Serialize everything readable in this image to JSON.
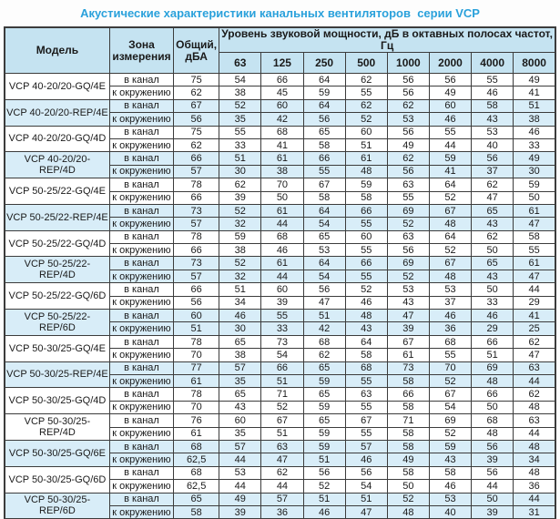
{
  "title": "Акустические характеристики канальных вентиляторов  серии VCP",
  "colors": {
    "title_text": "#2aa1db",
    "header_bg": "#c5e3f1",
    "shaded_row_bg": "#d8edf8",
    "border": "#3c3c3c"
  },
  "table": {
    "headers": {
      "model": "Модель",
      "zone": "Зона измерения",
      "total": "Общий, дБА",
      "spectrum": "Уровень звуковой мощности, дБ в октавных полосах частот, Гц",
      "frequencies": [
        "63",
        "125",
        "250",
        "500",
        "1000",
        "2000",
        "4000",
        "8000"
      ]
    },
    "groups": [
      {
        "model": "VCP 40-20/20-GQ/4E",
        "shaded": false,
        "rows": [
          {
            "zone": "в канал",
            "total": "75",
            "levels": [
              54,
              66,
              64,
              62,
              56,
              56,
              55,
              49
            ]
          },
          {
            "zone": "к окружению",
            "total": "62",
            "levels": [
              38,
              45,
              59,
              55,
              56,
              49,
              46,
              41
            ]
          }
        ]
      },
      {
        "model": "VCP 40-20/20-REP/4E",
        "shaded": true,
        "rows": [
          {
            "zone": "в канал",
            "total": "67",
            "levels": [
              52,
              60,
              64,
              62,
              62,
              60,
              58,
              51
            ]
          },
          {
            "zone": "к окружению",
            "total": "56",
            "levels": [
              35,
              42,
              56,
              52,
              53,
              46,
              43,
              38
            ]
          }
        ]
      },
      {
        "model": "VCP 40-20/20-GQ/4D",
        "shaded": false,
        "rows": [
          {
            "zone": "в канал",
            "total": "75",
            "levels": [
              55,
              68,
              65,
              60,
              56,
              55,
              53,
              46
            ]
          },
          {
            "zone": "к окружению",
            "total": "62",
            "levels": [
              33,
              41,
              58,
              51,
              49,
              44,
              40,
              33
            ]
          }
        ]
      },
      {
        "model": "VCP 40-20/20-REP/4D",
        "shaded": true,
        "rows": [
          {
            "zone": "в канал",
            "total": "66",
            "levels": [
              51,
              61,
              66,
              61,
              62,
              59,
              56,
              49
            ]
          },
          {
            "zone": "к окружению",
            "total": "57",
            "levels": [
              30,
              38,
              55,
              48,
              56,
              41,
              37,
              30
            ]
          }
        ]
      },
      {
        "model": "VCP 50-25/22-GQ/4E",
        "shaded": false,
        "rows": [
          {
            "zone": "в канал",
            "total": "78",
            "levels": [
              62,
              70,
              67,
              59,
              63,
              64,
              62,
              59
            ]
          },
          {
            "zone": "к окружению",
            "total": "66",
            "levels": [
              39,
              50,
              58,
              58,
              55,
              52,
              47,
              50
            ]
          }
        ]
      },
      {
        "model": "VCP 50-25/22-REP/4E",
        "shaded": true,
        "rows": [
          {
            "zone": "в канал",
            "total": "73",
            "levels": [
              52,
              61,
              64,
              66,
              69,
              67,
              65,
              61
            ]
          },
          {
            "zone": "к окружению",
            "total": "57",
            "levels": [
              32,
              44,
              54,
              55,
              52,
              48,
              43,
              47
            ]
          }
        ]
      },
      {
        "model": "VCP 50-25/22-GQ/4D",
        "shaded": false,
        "rows": [
          {
            "zone": "в канал",
            "total": "78",
            "levels": [
              59,
              68,
              65,
              60,
              63,
              64,
              62,
              58
            ]
          },
          {
            "zone": "к окружению",
            "total": "66",
            "levels": [
              38,
              46,
              53,
              55,
              56,
              52,
              50,
              55
            ]
          }
        ]
      },
      {
        "model": "VCP 50-25/22-REP/4D",
        "shaded": true,
        "rows": [
          {
            "zone": "в канал",
            "total": "73",
            "levels": [
              52,
              61,
              64,
              66,
              69,
              67,
              65,
              61
            ]
          },
          {
            "zone": "к окружению",
            "total": "57",
            "levels": [
              32,
              44,
              54,
              55,
              52,
              48,
              43,
              47
            ]
          }
        ]
      },
      {
        "model": "VCP 50-25/22-GQ/6D",
        "shaded": false,
        "rows": [
          {
            "zone": "в канал",
            "total": "66",
            "levels": [
              51,
              60,
              56,
              52,
              53,
              53,
              50,
              44
            ]
          },
          {
            "zone": "к окружению",
            "total": "56",
            "levels": [
              34,
              39,
              47,
              46,
              43,
              37,
              33,
              29
            ]
          }
        ]
      },
      {
        "model": "VCP 50-25/22-REP/6D",
        "shaded": true,
        "rows": [
          {
            "zone": "в канал",
            "total": "60",
            "levels": [
              46,
              55,
              51,
              48,
              47,
              46,
              46,
              41
            ]
          },
          {
            "zone": "к окружению",
            "total": "51",
            "levels": [
              30,
              33,
              42,
              43,
              39,
              36,
              29,
              25
            ]
          }
        ]
      },
      {
        "model": "VCP 50-30/25-GQ/4E",
        "shaded": false,
        "rows": [
          {
            "zone": "в канал",
            "total": "78",
            "levels": [
              65,
              73,
              68,
              64,
              67,
              68,
              66,
              62
            ]
          },
          {
            "zone": "к окружению",
            "total": "70",
            "levels": [
              38,
              54,
              62,
              58,
              61,
              55,
              51,
              47
            ]
          }
        ]
      },
      {
        "model": "VCP 50-30/25-REP/4E",
        "shaded": true,
        "rows": [
          {
            "zone": "в канал",
            "total": "77",
            "levels": [
              57,
              66,
              65,
              68,
              73,
              70,
              69,
              63
            ]
          },
          {
            "zone": "к окружению",
            "total": "61",
            "levels": [
              35,
              51,
              59,
              55,
              58,
              52,
              48,
              44
            ]
          }
        ]
      },
      {
        "model": "VCP 50-30/25-GQ/4D",
        "shaded": false,
        "rows": [
          {
            "zone": "в канал",
            "total": "78",
            "levels": [
              65,
              71,
              65,
              63,
              66,
              67,
              66,
              62
            ]
          },
          {
            "zone": "к окружению",
            "total": "70",
            "levels": [
              43,
              52,
              59,
              55,
              58,
              54,
              50,
              48
            ]
          }
        ]
      },
      {
        "model": "VCP 50-30/25-REP/4D",
        "shaded": false,
        "rows": [
          {
            "zone": "в канал",
            "total": "76",
            "levels": [
              60,
              67,
              65,
              67,
              71,
              69,
              68,
              63
            ]
          },
          {
            "zone": "к окружению",
            "total": "61",
            "levels": [
              35,
              51,
              59,
              55,
              58,
              52,
              48,
              44
            ]
          }
        ]
      },
      {
        "model": "VCP 50-30/25-GQ/6E",
        "shaded": true,
        "rows": [
          {
            "zone": "в канал",
            "total": "68",
            "levels": [
              57,
              63,
              59,
              57,
              58,
              59,
              56,
              48
            ]
          },
          {
            "zone": "к окружению",
            "total": "62,5",
            "levels": [
              44,
              47,
              51,
              46,
              49,
              43,
              39,
              34
            ]
          }
        ]
      },
      {
        "model": "VCP 50-30/25-GQ/6D",
        "shaded": false,
        "rows": [
          {
            "zone": "в канал",
            "total": "68",
            "levels": [
              53,
              62,
              56,
              56,
              58,
              58,
              56,
              48
            ]
          },
          {
            "zone": "к окружению",
            "total": "62,5",
            "levels": [
              44,
              44,
              52,
              54,
              50,
              46,
              44,
              36
            ]
          }
        ]
      },
      {
        "model": "VCP 50-30/25-REP/6D",
        "shaded": true,
        "rows": [
          {
            "zone": "в канал",
            "total": "65",
            "levels": [
              49,
              57,
              51,
              51,
              52,
              53,
              50,
              44
            ]
          },
          {
            "zone": "к окружению",
            "total": "58",
            "levels": [
              39,
              36,
              46,
              47,
              48,
              40,
              39,
              31
            ]
          }
        ]
      }
    ]
  }
}
